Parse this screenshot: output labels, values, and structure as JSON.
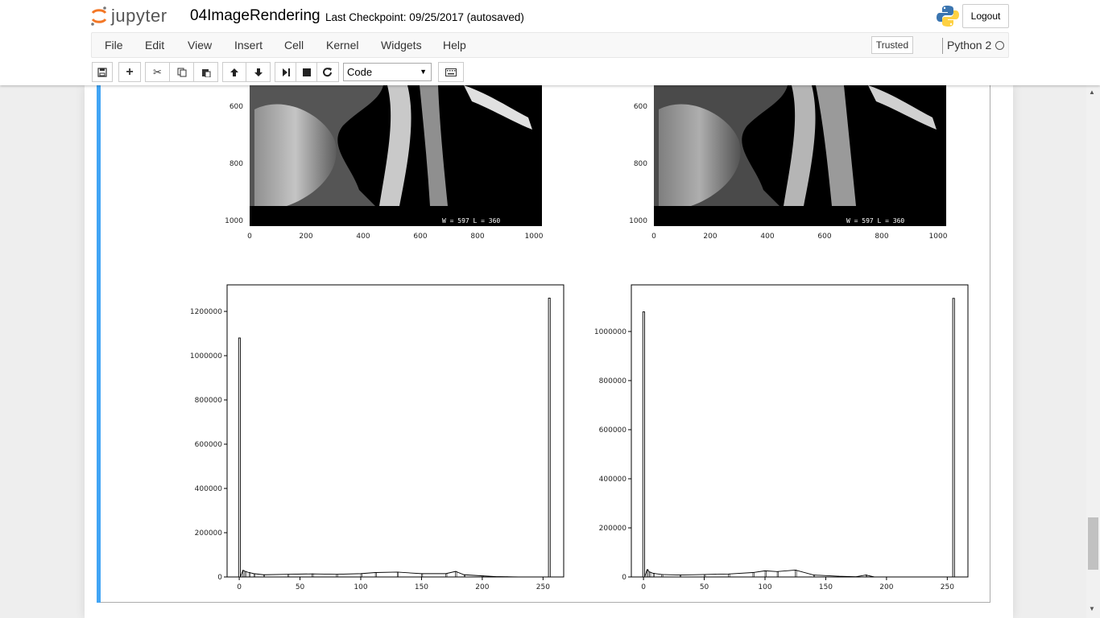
{
  "header": {
    "logo_text": "jupyter",
    "notebook_name": "04ImageRendering",
    "checkpoint": "Last Checkpoint: 09/25/2017 (autosaved)",
    "logout_label": "Logout"
  },
  "menu": {
    "items": [
      "File",
      "Edit",
      "View",
      "Insert",
      "Cell",
      "Kernel",
      "Widgets",
      "Help"
    ],
    "trusted": "Trusted",
    "kernel": "Python 2"
  },
  "toolbar": {
    "buttons": [
      "save-icon",
      "plus-icon",
      "cut-icon",
      "copy-icon",
      "paste-icon",
      "arrow-up-icon",
      "arrow-down-icon",
      "run-icon",
      "stop-icon",
      "restart-icon"
    ],
    "cell_type": "Code",
    "keyboard_icon": "keyboard-icon"
  },
  "colors": {
    "cell_accent": "#42a5f5",
    "histogram_line": "#000000"
  },
  "chart_data": [
    {
      "type": "heatmap",
      "content": "sagittal MRI image, original",
      "caption": "W =   597 L =   360",
      "x_ticks": [
        "0",
        "200",
        "400",
        "600",
        "800",
        "1000"
      ],
      "y_ticks": [
        "600",
        "800",
        "1000"
      ]
    },
    {
      "type": "heatmap",
      "content": "sagittal MRI image, rendered",
      "caption": "W =   597 L =   360",
      "x_ticks": [
        "0",
        "200",
        "400",
        "600",
        "800",
        "1000"
      ],
      "y_ticks": [
        "600",
        "800",
        "1000"
      ]
    },
    {
      "type": "bar",
      "x_ticks": [
        "0",
        "50",
        "100",
        "150",
        "200",
        "250"
      ],
      "y_ticks": [
        "0",
        "200000",
        "400000",
        "600000",
        "800000",
        "1000000",
        "1200000"
      ],
      "xlim": [
        -10,
        267
      ],
      "ylim": [
        0,
        1320000
      ],
      "peaks": [
        [
          0,
          1080000
        ],
        [
          255,
          1260000
        ]
      ],
      "baseline": [
        [
          3,
          30000
        ],
        [
          5,
          25000
        ],
        [
          8,
          20000
        ],
        [
          12,
          15000
        ],
        [
          20,
          10000
        ],
        [
          40,
          12000
        ],
        [
          60,
          14000
        ],
        [
          80,
          12000
        ],
        [
          100,
          15000
        ],
        [
          112,
          20000
        ],
        [
          130,
          22000
        ],
        [
          150,
          15000
        ],
        [
          170,
          15000
        ],
        [
          178,
          25000
        ],
        [
          185,
          10000
        ],
        [
          200,
          5000
        ],
        [
          210,
          2000
        ],
        [
          220,
          1000
        ],
        [
          230,
          0
        ]
      ]
    },
    {
      "type": "bar",
      "x_ticks": [
        "0",
        "50",
        "100",
        "150",
        "200",
        "250"
      ],
      "y_ticks": [
        "0",
        "200000",
        "400000",
        "600000",
        "800000",
        "1000000"
      ],
      "xlim": [
        -10,
        267
      ],
      "ylim": [
        0,
        1190000
      ],
      "peaks": [
        [
          0,
          1080000
        ],
        [
          255,
          1135000
        ]
      ],
      "baseline": [
        [
          3,
          30000
        ],
        [
          5,
          20000
        ],
        [
          8,
          15000
        ],
        [
          15,
          10000
        ],
        [
          30,
          8000
        ],
        [
          50,
          10000
        ],
        [
          70,
          12000
        ],
        [
          90,
          18000
        ],
        [
          100,
          25000
        ],
        [
          110,
          22000
        ],
        [
          125,
          28000
        ],
        [
          140,
          8000
        ],
        [
          160,
          3000
        ],
        [
          175,
          1000
        ],
        [
          183,
          8000
        ],
        [
          190,
          0
        ]
      ]
    }
  ]
}
